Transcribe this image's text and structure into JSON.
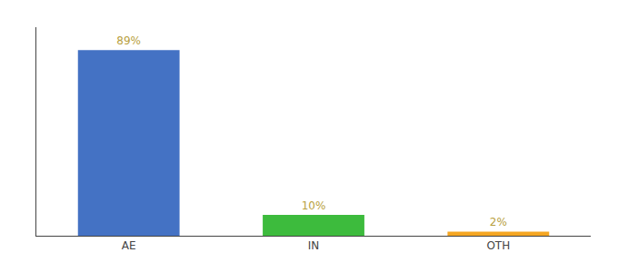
{
  "chart_data": {
    "type": "bar",
    "categories": [
      "AE",
      "IN",
      "OTH"
    ],
    "values": [
      89,
      10,
      2
    ],
    "value_labels": [
      "89%",
      "10%",
      "2%"
    ],
    "colors": [
      "#4472c4",
      "#3dbb3d",
      "#f5a623"
    ],
    "ylim": [
      0,
      100
    ],
    "data_labels": true,
    "tick_labels": "x",
    "grid": false
  }
}
